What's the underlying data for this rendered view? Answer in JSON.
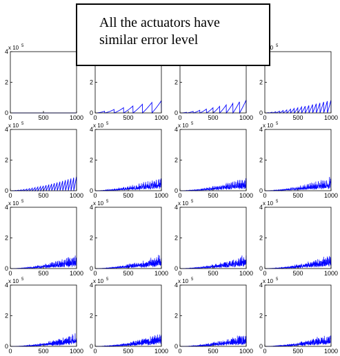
{
  "annotation": {
    "lines": [
      "All the actuators have",
      "similar error level"
    ]
  },
  "chart_data": {
    "type": "line",
    "layout": "4x4 grid of small multiples",
    "line_color": "#0000ff",
    "xlim": [
      0,
      1000
    ],
    "ylim": [
      0,
      400000
    ],
    "xticks": [
      0,
      500,
      1000
    ],
    "xtick_labels": [
      "0",
      "500",
      "1000"
    ],
    "yticks": [
      0,
      200000,
      400000
    ],
    "ytick_labels": [
      "0",
      "2",
      "4"
    ],
    "y_exponent_label": "x 10",
    "y_exponent_power": "5",
    "grid": false,
    "panels": [
      {
        "amplitude": 0,
        "teeth": 0,
        "growth": 1.0
      },
      {
        "amplitude": 80000,
        "teeth": 7,
        "growth": 1.0
      },
      {
        "amplitude": 85000,
        "teeth": 10,
        "growth": 1.3
      },
      {
        "amplitude": 85000,
        "teeth": 18,
        "growth": 1.3
      },
      {
        "amplitude": 95000,
        "teeth": 24,
        "growth": 1.5
      },
      {
        "amplitude": 95000,
        "teeth": 30,
        "growth": 1.5
      },
      {
        "amplitude": 100000,
        "teeth": 40,
        "growth": 1.6
      },
      {
        "amplitude": 100000,
        "teeth": 48,
        "growth": 1.6
      },
      {
        "amplitude": 100000,
        "teeth": 60,
        "growth": 1.7
      },
      {
        "amplitude": 100000,
        "teeth": 70,
        "growth": 1.7
      },
      {
        "amplitude": 100000,
        "teeth": 80,
        "growth": 1.7
      },
      {
        "amplitude": 100000,
        "teeth": 90,
        "growth": 1.7
      },
      {
        "amplitude": 100000,
        "teeth": 100,
        "growth": 1.8
      },
      {
        "amplitude": 100000,
        "teeth": 110,
        "growth": 1.8
      },
      {
        "amplitude": 100000,
        "teeth": 120,
        "growth": 1.8
      },
      {
        "amplitude": 100000,
        "teeth": 130,
        "growth": 1.8
      }
    ]
  }
}
